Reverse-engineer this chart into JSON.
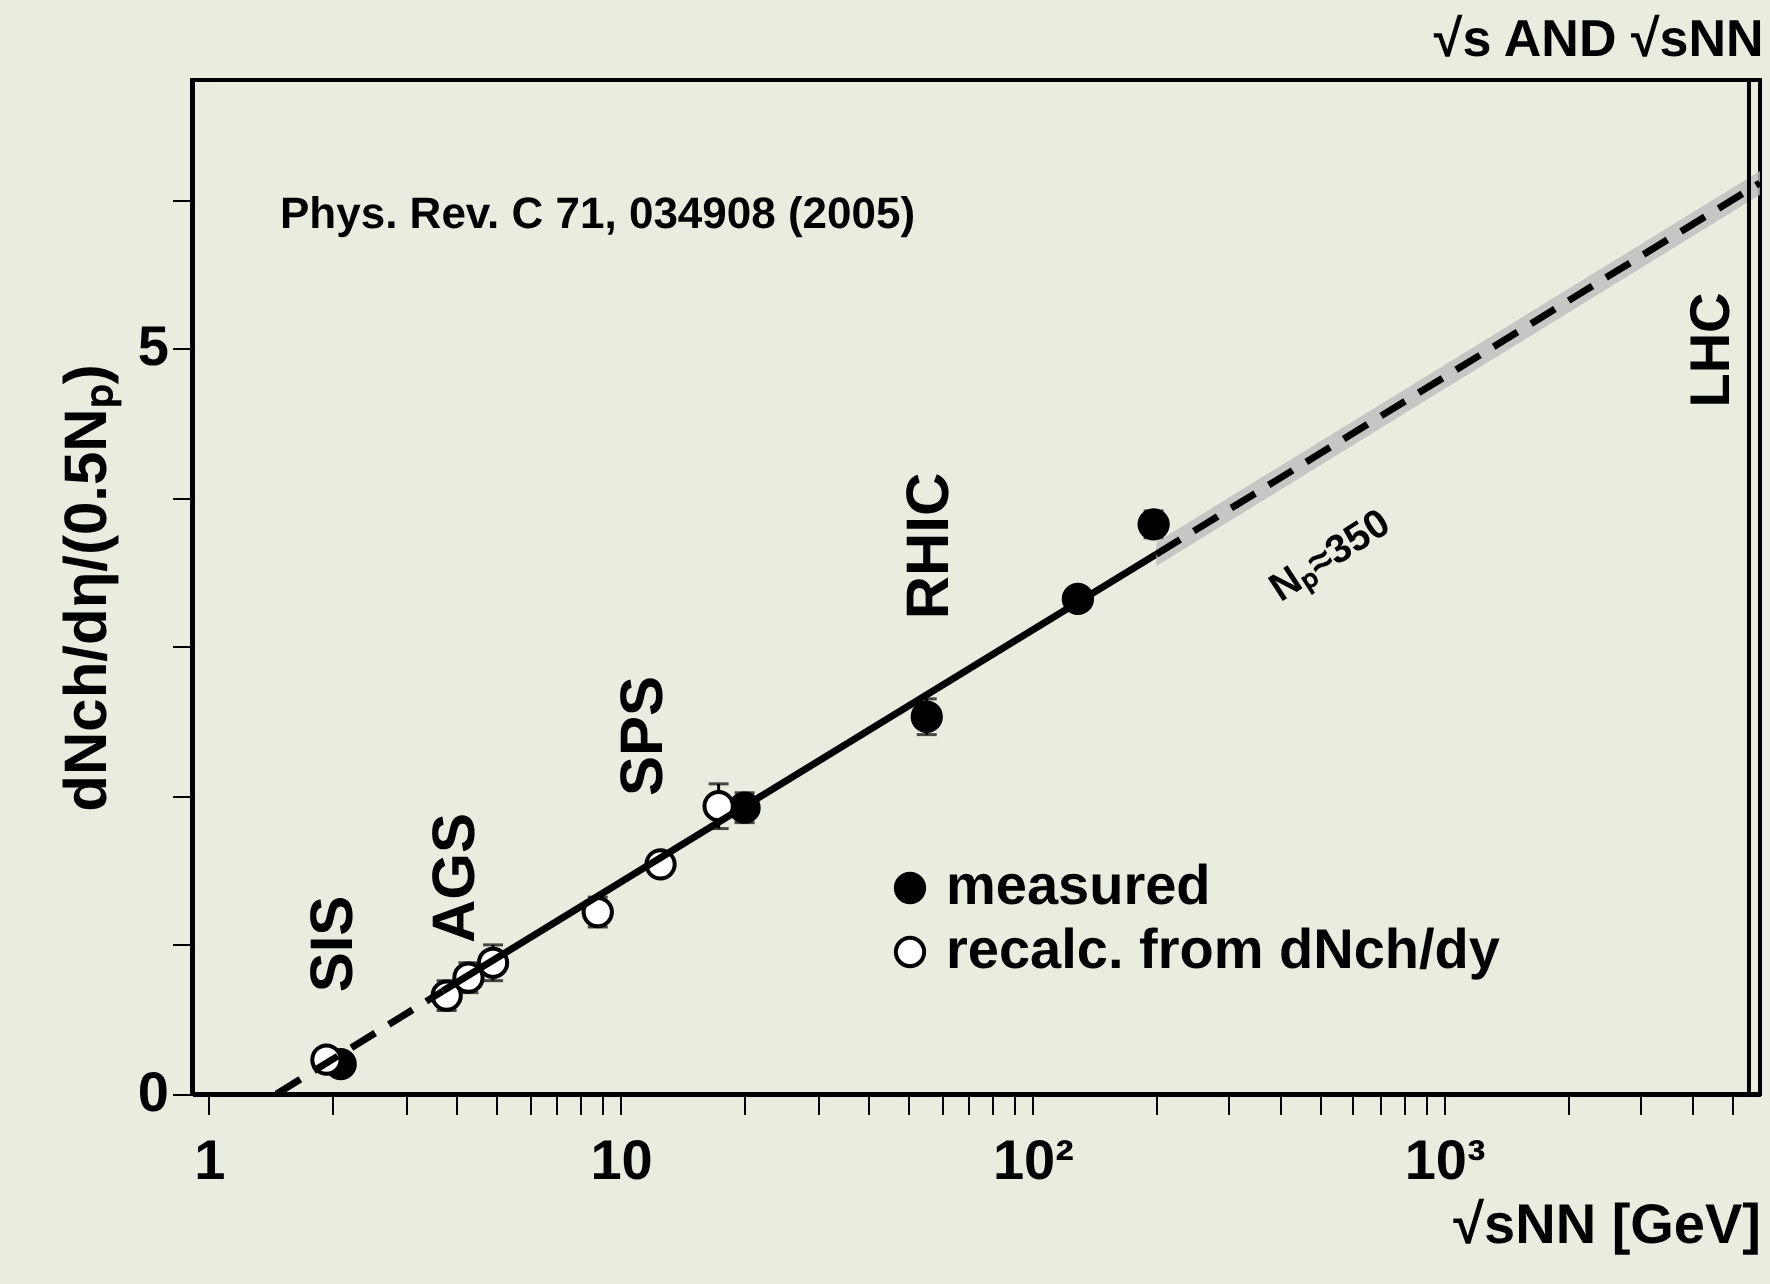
{
  "chart_data": {
    "type": "scatter",
    "title": "√s AND √sNN",
    "xlabel": "√sNN [GeV]",
    "ylabel": "dNch/dη/(0.5Nₚ)",
    "log": "x",
    "xlim": [
      0.91,
      5850
    ],
    "ylim": [
      0,
      6.8
    ],
    "xticks": [
      {
        "value": 1,
        "label": "1"
      },
      {
        "value": 2,
        "label": null
      },
      {
        "value": 3,
        "label": null
      },
      {
        "value": 4,
        "label": null
      },
      {
        "value": 5,
        "label": null
      },
      {
        "value": 6,
        "label": null
      },
      {
        "value": 7,
        "label": null
      },
      {
        "value": 8,
        "label": null
      },
      {
        "value": 9,
        "label": null
      },
      {
        "value": 10,
        "label": "10"
      },
      {
        "value": 20,
        "label": null
      },
      {
        "value": 30,
        "label": null
      },
      {
        "value": 40,
        "label": null
      },
      {
        "value": 50,
        "label": null
      },
      {
        "value": 60,
        "label": null
      },
      {
        "value": 70,
        "label": null
      },
      {
        "value": 80,
        "label": null
      },
      {
        "value": 90,
        "label": null
      },
      {
        "value": 100,
        "label": "10²"
      },
      {
        "value": 200,
        "label": null
      },
      {
        "value": 300,
        "label": null
      },
      {
        "value": 400,
        "label": null
      },
      {
        "value": 500,
        "label": null
      },
      {
        "value": 600,
        "label": null
      },
      {
        "value": 700,
        "label": null
      },
      {
        "value": 800,
        "label": null
      },
      {
        "value": 900,
        "label": null
      },
      {
        "value": 1000,
        "label": "10³"
      },
      {
        "value": 2000,
        "label": null
      },
      {
        "value": 3000,
        "label": null
      },
      {
        "value": 4000,
        "label": null
      },
      {
        "value": 5000,
        "label": null
      }
    ],
    "yticks": [
      0,
      {
        "value": 1,
        "label": null
      },
      {
        "value": 2,
        "label": null
      },
      {
        "value": 3,
        "label": null
      },
      {
        "value": 4,
        "label": null
      },
      5,
      {
        "value": 6,
        "label": null
      }
    ],
    "legend": "bottom right",
    "marker": "circle",
    "series": [
      {
        "name": "measured",
        "color": "#000000",
        "x": [
          2.09,
          20.0,
          55.4,
          129,
          197
        ],
        "values": [
          0.2,
          1.92,
          2.53,
          3.32,
          3.82
        ],
        "errors": [
          null,
          0.1,
          0.12,
          0.07,
          0.09
        ]
      },
      {
        "name": "recalc. from dNch/dy",
        "color": "#000000",
        "x": [
          1.93,
          3.78,
          4.27,
          4.9,
          8.8,
          12.5,
          17.3
        ],
        "values": [
          0.23,
          0.66,
          0.78,
          0.88,
          1.22,
          1.54,
          1.93
        ],
        "errors": [
          null,
          0.1,
          0.1,
          0.12,
          0.1,
          0.07,
          0.15
        ]
      },
      {
        "type": "line",
        "marker": "none",
        "line_style": "dashed",
        "color": "#000000",
        "x": [
          1.46,
          3.7
        ],
        "values": [
          0,
          0.69
        ]
      },
      {
        "type": "line",
        "marker": "none",
        "line_style": "solid",
        "color": "#000000",
        "x": [
          3.7,
          200
        ],
        "values": [
          0.69,
          3.62
        ]
      },
      {
        "type": "line",
        "marker": "none",
        "line_style": "dashed",
        "color": "#000000",
        "x": [
          200,
          5850
        ],
        "values": [
          3.62,
          6.11
        ],
        "lower": [
          3.54,
          6.03
        ],
        "upper": [
          3.7,
          6.19
        ]
      }
    ],
    "ref_lines": [
      {
        "axis": "x",
        "value": 5500,
        "label": "LHC",
        "color": "#000000"
      }
    ],
    "annotations": [
      "Phys. Rev. C 71, 034908 (2005)",
      "SIS",
      "AGS",
      "SPS",
      "RHIC",
      "Nₚ≈350"
    ]
  }
}
